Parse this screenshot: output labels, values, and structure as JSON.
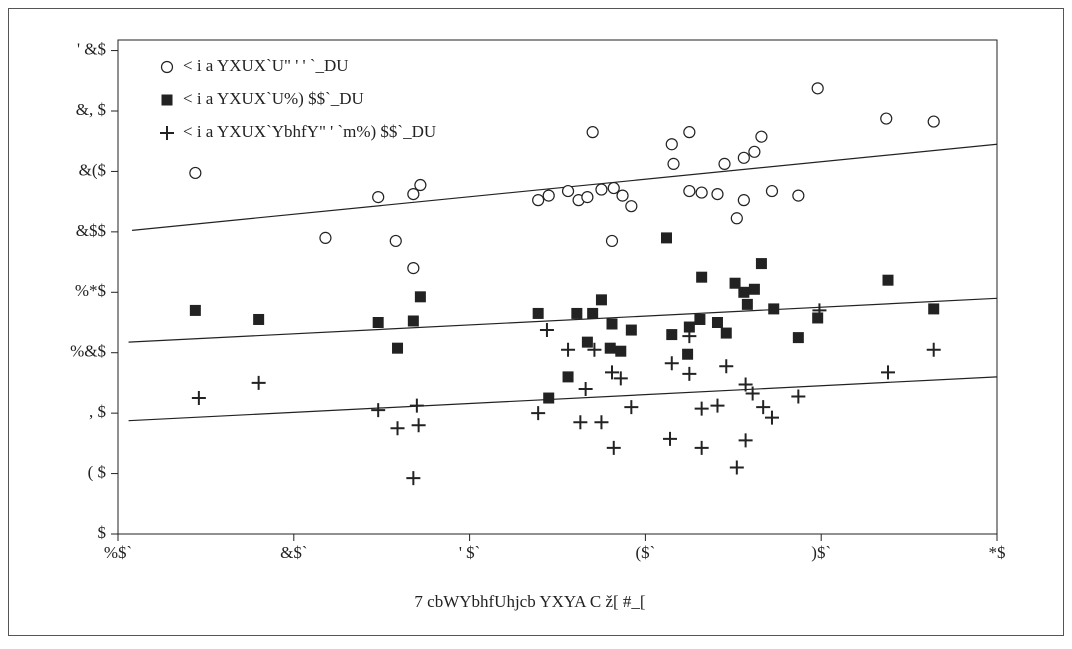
{
  "chart_data": {
    "type": "scatter",
    "x_label": "7 cbWYbhfUhjcb YXYA C ž[ #_[",
    "xlim": [
      10,
      60
    ],
    "ylim": [
      0,
      327
    ],
    "xticks": [
      {
        "value": 10,
        "label": "%$`"
      },
      {
        "value": 20,
        "label": "&$`"
      },
      {
        "value": 30,
        "label": "' $`"
      },
      {
        "value": 40,
        "label": "($`"
      },
      {
        "value": 50,
        "label": ")$`"
      },
      {
        "value": 60,
        "label": "*$"
      }
    ],
    "yticks": [
      {
        "value": 0,
        "label": "$"
      },
      {
        "value": 40,
        "label": "( $"
      },
      {
        "value": 80,
        "label": ", $"
      },
      {
        "value": 120,
        "label": "%&$"
      },
      {
        "value": 160,
        "label": "%*$"
      },
      {
        "value": 200,
        "label": "&$$"
      },
      {
        "value": 240,
        "label": "&($"
      },
      {
        "value": 280,
        "label": "&, $"
      },
      {
        "value": 320,
        "label": "' &$"
      }
    ],
    "series": [
      {
        "name": "< i a YXUX`U\" ' ' `_DU",
        "marker": "circle",
        "color": "#222222",
        "x": [
          14.4,
          21.8,
          24.8,
          25.8,
          26.8,
          27.2,
          26.8,
          33.9,
          34.5,
          35.6,
          36.2,
          36.7,
          37.0,
          37.5,
          38.2,
          38.1,
          38.7,
          39.2,
          41.5,
          41.6,
          42.5,
          42.5,
          43.2,
          44.1,
          44.5,
          45.2,
          45.6,
          45.6,
          46.2,
          46.6,
          47.2,
          48.7,
          49.8,
          53.7,
          56.4
        ],
        "values": [
          239,
          196,
          223,
          194,
          225,
          231,
          176,
          221,
          224,
          227,
          221,
          223,
          266,
          228,
          229,
          194,
          224,
          217,
          258,
          245,
          266,
          227,
          226,
          225,
          245,
          209,
          221,
          249,
          253,
          263,
          227,
          224,
          295,
          275,
          273
        ],
        "trend_x": [
          10.8,
          60
        ],
        "trend_y": [
          201,
          258
        ]
      },
      {
        "name": "< i a YXUX`U%) $$`_DU",
        "marker": "square",
        "color": "#222222",
        "x": [
          14.4,
          18.0,
          24.8,
          25.9,
          26.8,
          27.2,
          33.9,
          34.5,
          35.6,
          36.1,
          36.7,
          37.0,
          37.5,
          38.0,
          38.1,
          38.6,
          39.2,
          41.2,
          41.5,
          42.4,
          42.5,
          43.1,
          43.2,
          44.1,
          44.6,
          45.1,
          45.6,
          45.8,
          46.2,
          46.6,
          47.3,
          48.7,
          49.8,
          53.8,
          56.4
        ],
        "values": [
          148,
          142,
          140,
          123,
          141,
          157,
          146,
          90,
          104,
          146,
          127,
          146,
          155,
          123,
          139,
          121,
          135,
          196,
          132,
          119,
          137,
          142,
          170,
          140,
          133,
          166,
          160,
          152,
          162,
          179,
          149,
          130,
          143,
          168,
          149
        ],
        "trend_x": [
          10.6,
          60
        ],
        "trend_y": [
          127,
          156
        ]
      },
      {
        "name": "< i a YXUX`YbhfY\" ' `m%) $$`_DU",
        "marker": "plus",
        "color": "#222222",
        "x": [
          14.6,
          18.0,
          24.8,
          25.9,
          27.0,
          27.1,
          26.8,
          33.9,
          34.4,
          35.6,
          36.3,
          36.6,
          37.1,
          37.5,
          38.1,
          38.2,
          38.6,
          39.2,
          41.4,
          41.5,
          42.5,
          42.5,
          43.2,
          43.2,
          44.1,
          44.6,
          45.2,
          45.7,
          45.7,
          46.1,
          46.7,
          47.2,
          48.7,
          49.9,
          53.8,
          56.4
        ],
        "values": [
          90,
          100,
          82,
          70,
          85,
          72,
          37,
          80,
          135,
          122,
          74,
          96,
          122,
          74,
          107,
          57,
          103,
          84,
          63,
          113,
          131,
          106,
          83,
          57,
          85,
          111,
          44,
          99,
          62,
          93,
          84,
          77,
          91,
          148,
          107,
          122
        ],
        "trend_x": [
          10.6,
          60
        ],
        "trend_y": [
          75,
          104
        ]
      }
    ]
  }
}
